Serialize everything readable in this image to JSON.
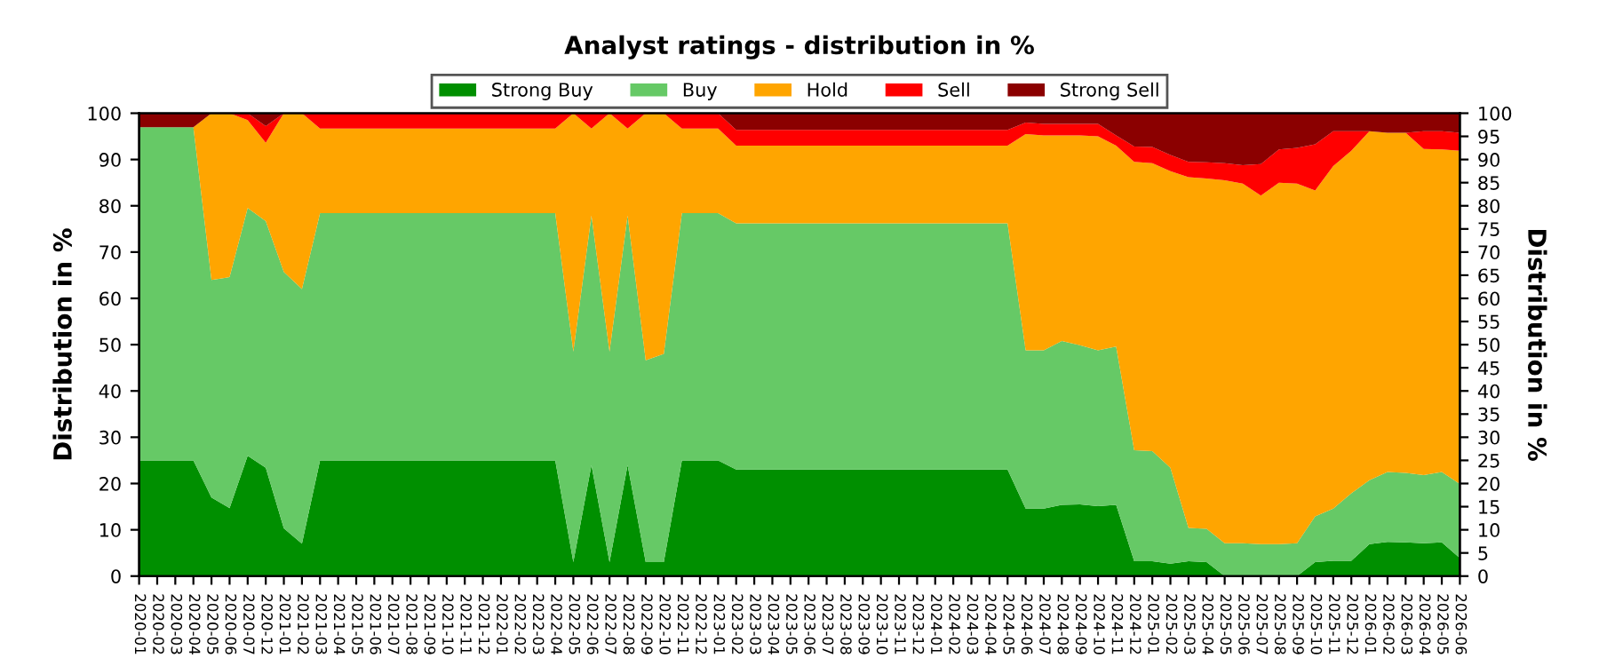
{
  "chart_data": {
    "type": "area",
    "stacked": true,
    "title": "Analyst ratings - distribution in %",
    "ylabel": "Distribution in %",
    "y2label": "Distribution in %",
    "categories": [
      "2020-01",
      "2020-02",
      "2020-03",
      "2020-04",
      "2020-05",
      "2020-06",
      "2020-07",
      "2020-12",
      "2021-01",
      "2021-02",
      "2021-03",
      "2021-04",
      "2021-05",
      "2021-06",
      "2021-07",
      "2021-08",
      "2021-09",
      "2021-10",
      "2021-11",
      "2021-12",
      "2022-01",
      "2022-02",
      "2022-03",
      "2022-04",
      "2022-05",
      "2022-06",
      "2022-07",
      "2022-08",
      "2022-09",
      "2022-10",
      "2022-11",
      "2022-12",
      "2023-01",
      "2023-02",
      "2023-03",
      "2023-04",
      "2023-05",
      "2023-06",
      "2023-07",
      "2023-08",
      "2023-09",
      "2023-10",
      "2023-11",
      "2023-12",
      "2024-01",
      "2024-02",
      "2024-03",
      "2024-04",
      "2024-05",
      "2024-06",
      "2024-07",
      "2024-08",
      "2024-09",
      "2024-10",
      "2024-11",
      "2024-12",
      "2025-01",
      "2025-02",
      "2025-03",
      "2025-04",
      "2025-05",
      "2025-06",
      "2025-07",
      "2025-08",
      "2025-09",
      "2025-10",
      "2025-11",
      "2025-12",
      "2026-01",
      "2026-02",
      "2026-03",
      "2026-04",
      "2026-05",
      "2026-06"
    ],
    "series": [
      {
        "name": "Strong Buy",
        "color": "#008f00",
        "values": [
          25,
          25,
          25,
          25,
          17,
          14.7,
          26,
          23.4,
          10.3,
          7,
          25,
          25,
          25,
          25,
          25,
          25,
          25,
          25,
          25,
          25,
          25,
          25,
          25,
          25,
          3,
          24,
          3,
          24,
          3,
          3,
          25,
          25,
          25,
          23,
          23,
          23,
          23,
          23,
          23,
          23,
          23,
          23,
          23,
          23,
          23,
          23,
          23,
          23,
          23,
          14.6,
          14.6,
          15.4,
          15.5,
          15.1,
          15.4,
          3.2,
          3.2,
          2.7,
          3.2,
          3,
          0,
          0,
          0,
          0,
          0,
          3,
          3.3,
          3.3,
          6.9,
          7.4,
          7.3,
          7.1,
          7.3,
          3.9
        ]
      },
      {
        "name": "Buy",
        "color": "#66c966",
        "values": [
          72,
          72,
          72,
          72,
          47,
          49.9,
          53.5,
          53.3,
          55.4,
          55,
          53.4,
          53.4,
          53.4,
          53.4,
          53.4,
          53.4,
          53.4,
          53.4,
          53.4,
          53.4,
          53.4,
          53.4,
          53.4,
          53.4,
          45.5,
          53.9,
          45.5,
          53.9,
          43.6,
          45,
          53.4,
          53.4,
          53.4,
          53.2,
          53.2,
          53.2,
          53.2,
          53.2,
          53.2,
          53.2,
          53.2,
          53.2,
          53.2,
          53.2,
          53.2,
          53.2,
          53.2,
          53.2,
          53.2,
          34.2,
          34.2,
          35.4,
          34.4,
          33.7,
          34.2,
          24,
          23.8,
          20.7,
          7.2,
          7.2,
          7.1,
          7.1,
          6.9,
          6.9,
          7.1,
          9.9,
          11.3,
          14.6,
          13.8,
          15.1,
          15,
          14.7,
          15.2,
          16
        ]
      },
      {
        "name": "Hold",
        "color": "#ffa500",
        "values": [
          0,
          0,
          0,
          0,
          36,
          35.4,
          19,
          16.9,
          34.3,
          38,
          18.3,
          18.3,
          18.3,
          18.3,
          18.3,
          18.3,
          18.3,
          18.3,
          18.3,
          18.3,
          18.3,
          18.3,
          18.3,
          18.3,
          51.5,
          18.8,
          51.5,
          18.8,
          53.4,
          52,
          18.3,
          18.3,
          18.3,
          16.8,
          16.8,
          16.8,
          16.8,
          16.8,
          16.8,
          16.8,
          16.8,
          16.8,
          16.8,
          16.8,
          16.8,
          16.8,
          16.8,
          16.8,
          16.8,
          46.7,
          46.4,
          44.4,
          45.3,
          46.2,
          43.4,
          62.3,
          62.2,
          64.1,
          75.8,
          75.7,
          78.4,
          77.7,
          75.3,
          78.1,
          77.7,
          70.4,
          74,
          74,
          75.4,
          73.3,
          73.5,
          70.5,
          69.7,
          72
        ]
      },
      {
        "name": "Sell",
        "color": "#ff0000",
        "values": [
          0,
          0,
          0,
          0,
          0,
          0,
          1.5,
          3.6,
          0,
          0,
          3.3,
          3.3,
          3.3,
          3.3,
          3.3,
          3.3,
          3.3,
          3.3,
          3.3,
          3.3,
          3.3,
          3.3,
          3.3,
          3.3,
          0,
          3.3,
          0,
          3.3,
          0,
          0,
          3.3,
          3.3,
          3.3,
          3.4,
          3.4,
          3.4,
          3.4,
          3.4,
          3.4,
          3.4,
          3.4,
          3.4,
          3.4,
          3.4,
          3.4,
          3.4,
          3.4,
          3.4,
          3.4,
          2.5,
          2.5,
          2.5,
          2.5,
          2.7,
          2.2,
          3.3,
          3.5,
          3.5,
          3.3,
          3.5,
          3.7,
          4,
          6.8,
          7.2,
          7.7,
          10,
          7.5,
          4.2,
          0,
          0,
          0,
          3.8,
          3.9,
          3.9
        ]
      },
      {
        "name": "Strong Sell",
        "color": "#8b0000",
        "values": [
          3,
          3,
          3,
          3,
          0,
          0,
          0,
          2.8,
          0,
          0,
          0,
          0,
          0,
          0,
          0,
          0,
          0,
          0,
          0,
          0,
          0,
          0,
          0,
          0,
          0,
          0,
          0,
          0,
          0,
          0,
          0,
          0,
          0,
          3.6,
          3.6,
          3.6,
          3.6,
          3.6,
          3.6,
          3.6,
          3.6,
          3.6,
          3.6,
          3.6,
          3.6,
          3.6,
          3.6,
          3.6,
          3.6,
          2,
          2.3,
          2.3,
          2.3,
          2.3,
          4.8,
          7.2,
          7.3,
          9,
          10.5,
          10.6,
          10.8,
          11.2,
          11,
          7.8,
          7.5,
          6.7,
          3.9,
          3.9,
          3.9,
          4.2,
          4.2,
          3.9,
          3.9,
          4.2
        ]
      }
    ],
    "ylim": [
      0,
      100
    ],
    "yticks": [
      0,
      10,
      20,
      30,
      40,
      50,
      60,
      70,
      80,
      90,
      100
    ],
    "y2lim": [
      0,
      100
    ],
    "y2ticks": [
      0,
      5,
      10,
      15,
      20,
      25,
      30,
      35,
      40,
      45,
      50,
      55,
      60,
      65,
      70,
      75,
      80,
      85,
      90,
      95,
      100
    ],
    "grid": "y",
    "legend": "top"
  }
}
